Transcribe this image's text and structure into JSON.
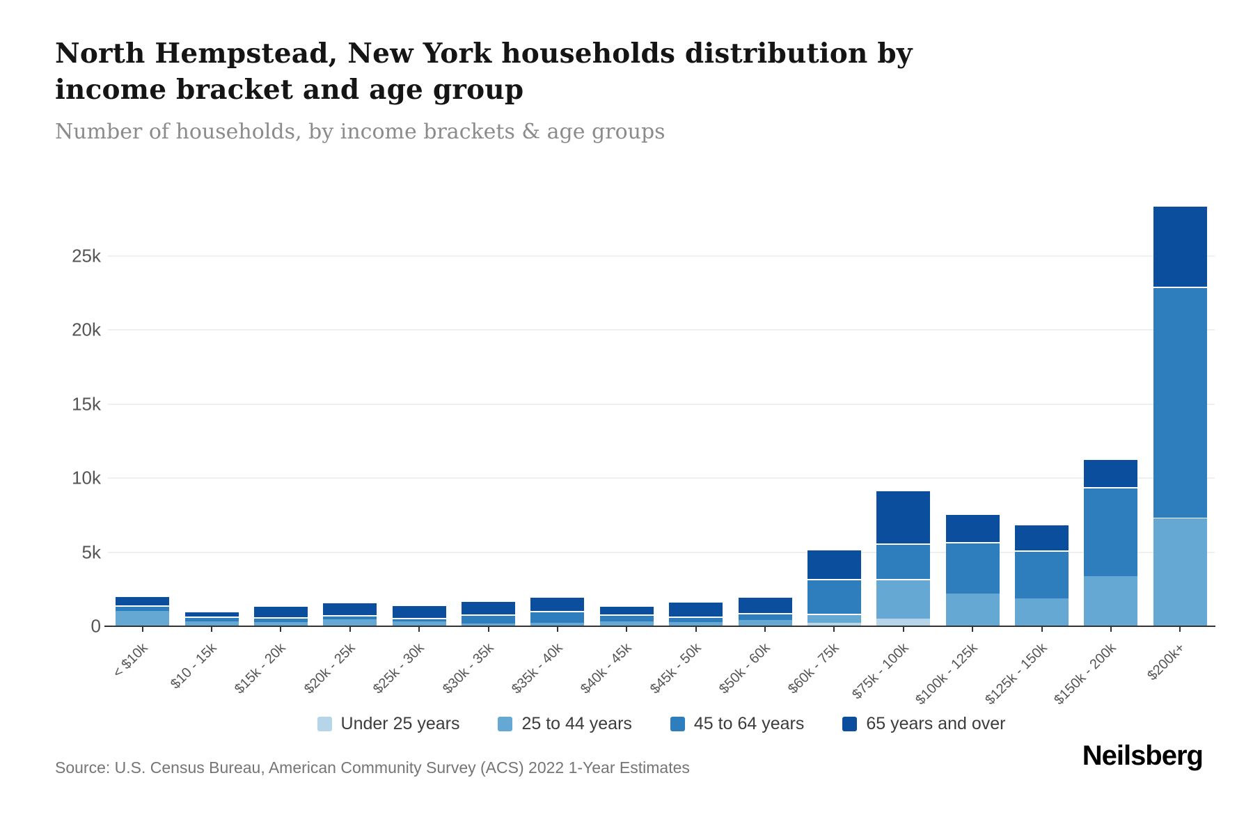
{
  "header": {
    "title": "North Hempstead, New York households distribution by income bracket and age group",
    "subtitle": "Number of households, by income brackets & age groups"
  },
  "footer": {
    "source": "Source: U.S. Census Bureau, American Community Survey (ACS) 2022 1-Year Estimates",
    "brand": "Neilsberg"
  },
  "colors": {
    "background": "#ffffff",
    "title_text": "#151515",
    "subtitle_text": "#8b8b8b",
    "axis_text": "#555555",
    "axis_line": "#333333",
    "gridline": "#efefef",
    "under_25": "#b7d5e8",
    "25_to_44": "#64a8d3",
    "45_to_64": "#2e7dbc",
    "65_and_over": "#0c4e9e"
  },
  "chart_data": {
    "type": "bar",
    "stacked": true,
    "title": "North Hempstead, New York households distribution by income bracket and age group",
    "subtitle": "Number of households, by income brackets & age groups",
    "xlabel": "",
    "ylabel": "Number of households",
    "grid": "horizontal",
    "legend_position": "bottom",
    "ylim": [
      0,
      28500
    ],
    "ytick_values": [
      0,
      5000,
      10000,
      15000,
      20000,
      25000
    ],
    "ytick_labels": [
      "0",
      "5k",
      "10k",
      "15k",
      "20k",
      "25k"
    ],
    "categories": [
      "< $10k",
      "$10 - 15k",
      "$15k - 20k",
      "$20k - 25k",
      "$25k - 30k",
      "$30k - 35k",
      "$35k - 40k",
      "$40k - 45k",
      "$45k - 50k",
      "$50k - 60k",
      "$60k - 75k",
      "$75k - 100k",
      "$100k - 125k",
      "$125k - 150k",
      "$150k - 200k",
      "$200k+"
    ],
    "series": [
      {
        "name": "Under 25 years",
        "color": "#b7d5e8",
        "values": [
          0,
          0,
          0,
          0,
          0,
          0,
          0,
          0,
          0,
          0,
          250,
          500,
          0,
          0,
          0,
          0
        ]
      },
      {
        "name": "25 to 44 years",
        "color": "#64a8d3",
        "values": [
          1050,
          350,
          300,
          450,
          350,
          200,
          250,
          350,
          300,
          400,
          600,
          2700,
          2200,
          1900,
          3400,
          7300
        ]
      },
      {
        "name": "45 to 64 years",
        "color": "#2e7dbc",
        "values": [
          350,
          300,
          300,
          300,
          200,
          600,
          800,
          450,
          350,
          500,
          2350,
          2400,
          3500,
          3200,
          6000,
          15600
        ]
      },
      {
        "name": "65 years and over",
        "color": "#0c4e9e",
        "values": [
          650,
          400,
          800,
          900,
          900,
          950,
          950,
          600,
          1050,
          1100,
          2000,
          3600,
          1900,
          1800,
          1900,
          5500
        ]
      }
    ],
    "totals": [
      2050,
      1050,
      1400,
      1650,
      1450,
      1750,
      2000,
      1400,
      1700,
      2000,
      5200,
      9200,
      7600,
      6900,
      11300,
      28400
    ]
  }
}
